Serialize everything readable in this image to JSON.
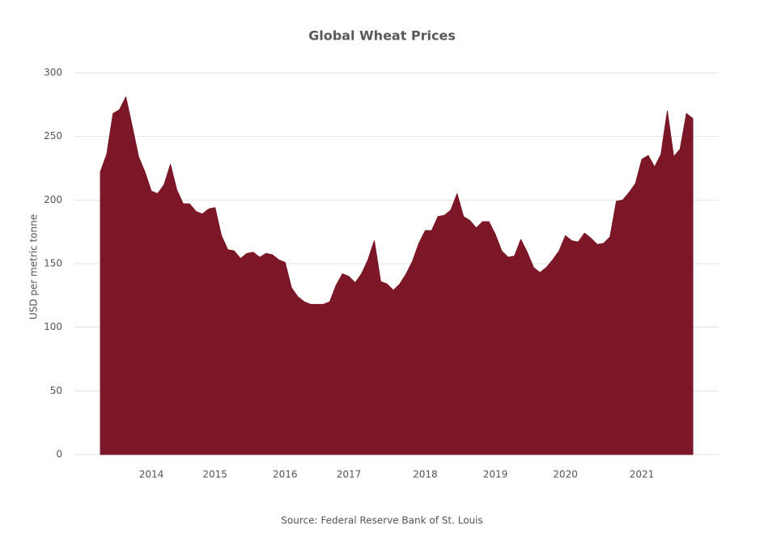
{
  "chart_data": {
    "type": "area",
    "title": "Global Wheat Prices",
    "y_label": "USD per metric tonne",
    "source": "Source: Federal Reserve Bank of St. Louis",
    "color": "#7b1727",
    "grid": true,
    "ylim": [
      0,
      300
    ],
    "yticks": [
      0,
      50,
      100,
      150,
      200,
      250,
      300
    ],
    "categories": [
      null,
      null,
      null,
      null,
      null,
      null,
      null,
      null,
      "2014",
      null,
      null,
      null,
      null,
      null,
      null,
      null,
      null,
      null,
      "2015",
      null,
      null,
      null,
      null,
      null,
      null,
      null,
      null,
      null,
      null,
      "2016",
      null,
      null,
      null,
      null,
      null,
      null,
      null,
      null,
      null,
      "2017",
      null,
      null,
      null,
      null,
      null,
      null,
      null,
      null,
      null,
      null,
      null,
      "2018",
      null,
      null,
      null,
      null,
      null,
      null,
      null,
      null,
      null,
      null,
      "2019",
      null,
      null,
      null,
      null,
      null,
      null,
      null,
      null,
      null,
      null,
      "2020",
      null,
      null,
      null,
      null,
      null,
      null,
      null,
      null,
      null,
      null,
      null,
      "2021",
      null,
      null,
      null,
      null,
      null,
      null,
      null,
      null
    ],
    "values": [
      222,
      236,
      268,
      271,
      281,
      258,
      234,
      222,
      207,
      205,
      212,
      228,
      208,
      197,
      197,
      191,
      189,
      193,
      194,
      172,
      161,
      160,
      154,
      158,
      159,
      155,
      158,
      157,
      153,
      151,
      131,
      124,
      120,
      118,
      118,
      118,
      120,
      133,
      142,
      140,
      135,
      142,
      153,
      168,
      136,
      134,
      129,
      134,
      142,
      152,
      166,
      176,
      176,
      187,
      188,
      192,
      205,
      187,
      184,
      178,
      183,
      183,
      173,
      160,
      155,
      156,
      169,
      159,
      147,
      143,
      147,
      153,
      160,
      172,
      168,
      167,
      174,
      170,
      165,
      166,
      171,
      199,
      200,
      206,
      213,
      232,
      235,
      226,
      236,
      270,
      234,
      240,
      268,
      264
    ]
  }
}
